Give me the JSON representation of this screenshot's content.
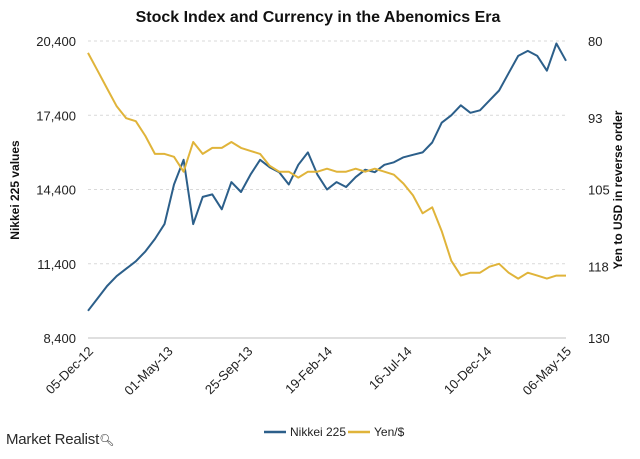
{
  "brand": {
    "name": "Market Realist",
    "icon": "magnifier-icon"
  },
  "chart_data": {
    "type": "line",
    "title": "Stock Index and Currency in the Abenomics Era",
    "x_ticks": [
      "05-Dec-12",
      "01-May-13",
      "25-Sep-13",
      "19-Feb-14",
      "16-Jul-14",
      "10-Dec-14",
      "06-May-15"
    ],
    "y_left": {
      "label": "Nikkei 225 values",
      "range": [
        8400,
        20400
      ],
      "ticks": [
        "8,400",
        "11,400",
        "14,400",
        "17,400",
        "20,400"
      ],
      "tick_values": [
        8400,
        11400,
        14400,
        17400,
        20400
      ]
    },
    "y_right": {
      "label": "Yen to USD in reverse order",
      "range": [
        80,
        130
      ],
      "reversed": true,
      "ticks": [
        "80",
        "93",
        "105",
        "118",
        "130"
      ],
      "tick_values": [
        80,
        93,
        105,
        118,
        130
      ]
    },
    "grid": true,
    "legend_position": "bottom",
    "series": [
      {
        "name": "Nikkei 225",
        "axis": "left",
        "color": "#2c5f8a",
        "x": [
          0,
          0.02,
          0.04,
          0.06,
          0.08,
          0.1,
          0.12,
          0.14,
          0.16,
          0.18,
          0.2,
          0.22,
          0.24,
          0.26,
          0.28,
          0.3,
          0.32,
          0.34,
          0.36,
          0.38,
          0.4,
          0.42,
          0.44,
          0.46,
          0.48,
          0.5,
          0.52,
          0.54,
          0.56,
          0.58,
          0.6,
          0.62,
          0.64,
          0.66,
          0.68,
          0.7,
          0.72,
          0.74,
          0.76,
          0.78,
          0.8,
          0.82,
          0.84,
          0.86,
          0.88,
          0.9,
          0.92,
          0.94,
          0.96,
          0.98,
          1.0
        ],
        "values": [
          9500,
          10000,
          10500,
          10900,
          11200,
          11500,
          11900,
          12400,
          13000,
          14600,
          15600,
          13000,
          14100,
          14200,
          13600,
          14700,
          14300,
          15000,
          15600,
          15300,
          15100,
          14600,
          15400,
          15900,
          15000,
          14400,
          14700,
          14500,
          14900,
          15200,
          15100,
          15400,
          15500,
          15700,
          15800,
          15900,
          16300,
          17100,
          17400,
          17800,
          17500,
          17600,
          18000,
          18400,
          19100,
          19800,
          20000,
          19800,
          19200,
          20300,
          19600
        ]
      },
      {
        "name": "Yen/$",
        "axis": "right",
        "color": "#e0b43a",
        "x": [
          0,
          0.02,
          0.04,
          0.06,
          0.08,
          0.1,
          0.12,
          0.14,
          0.16,
          0.18,
          0.2,
          0.22,
          0.24,
          0.26,
          0.28,
          0.3,
          0.32,
          0.34,
          0.36,
          0.38,
          0.4,
          0.42,
          0.44,
          0.46,
          0.48,
          0.5,
          0.52,
          0.54,
          0.56,
          0.58,
          0.6,
          0.62,
          0.64,
          0.66,
          0.68,
          0.7,
          0.72,
          0.74,
          0.76,
          0.78,
          0.8,
          0.82,
          0.84,
          0.86,
          0.88,
          0.9,
          0.92,
          0.94,
          0.96,
          0.98,
          1.0
        ],
        "values": [
          82,
          85,
          88,
          91,
          93,
          93.5,
          96,
          99,
          99,
          99.5,
          102,
          97,
          99,
          98,
          98,
          97,
          98,
          98.5,
          99,
          101,
          102,
          102,
          103,
          102,
          102,
          101.5,
          102,
          102,
          101.5,
          102,
          101.5,
          102,
          102.5,
          104,
          106,
          109,
          108,
          112,
          117,
          119.5,
          119,
          119,
          118,
          117.5,
          119,
          120,
          119,
          119.5,
          120,
          119.5,
          119.5
        ]
      }
    ]
  }
}
